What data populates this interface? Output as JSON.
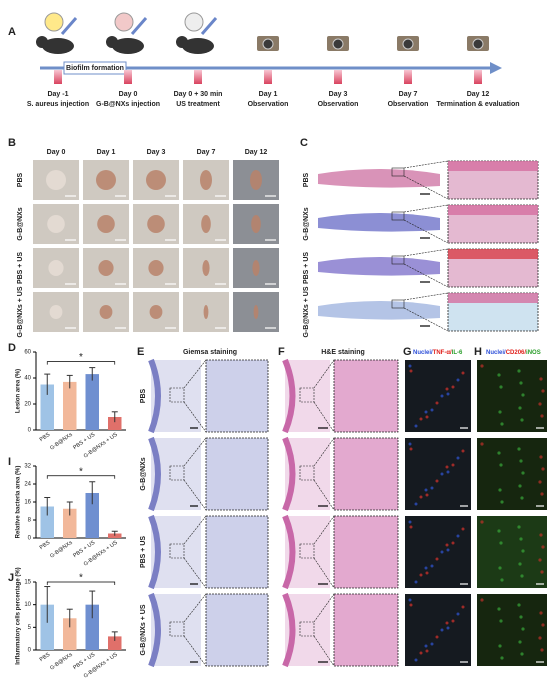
{
  "panel_a": {
    "label": "A",
    "banner": "Biofilm formation",
    "timeline": [
      {
        "day": "Day -1",
        "event": "S. aureus injection"
      },
      {
        "day": "Day 0",
        "event": "G-B@NXs injection"
      },
      {
        "day": "Day 0 + 30 min",
        "event": "US treatment"
      },
      {
        "day": "Day 1",
        "event": "Observation"
      },
      {
        "day": "Day 3",
        "event": "Observation"
      },
      {
        "day": "Day 7",
        "event": "Observation"
      },
      {
        "day": "Day 12",
        "event": "Termination & evaluation"
      }
    ]
  },
  "panel_b": {
    "label": "B",
    "days": [
      "Day 0",
      "Day 1",
      "Day 3",
      "Day 7",
      "Day 12"
    ],
    "groups": [
      "PBS",
      "G-B@NXs",
      "PBS + US",
      "G-B@NXs + US"
    ]
  },
  "panel_c": {
    "label": "C",
    "groups": [
      "PBS",
      "G-B@NXs",
      "PBS + US",
      "G-B@NXs + US"
    ]
  },
  "panel_e": {
    "label": "E",
    "title": "Giemsa staining",
    "groups": [
      "PBS",
      "G-B@NXs",
      "PBS + US",
      "G-B@NXs + US"
    ]
  },
  "panel_f": {
    "label": "F",
    "title": "H&E staining"
  },
  "panel_g": {
    "label": "G",
    "title": [
      "Nuclei/",
      "TNF-α/",
      "IL-6"
    ],
    "title_colors": [
      "#2b4ed8",
      "#e0201b",
      "#2a9d2a"
    ]
  },
  "panel_h": {
    "label": "H",
    "title": [
      "Nuclei/",
      "CD206/",
      "iNOS"
    ],
    "title_colors": [
      "#2b4ed8",
      "#e0201b",
      "#2a9d2a"
    ]
  },
  "chart_data": [
    {
      "type": "bar",
      "label": "D",
      "ylabel": "Lesion area (%)",
      "categories": [
        "PBS",
        "G-B@NXs",
        "PBS + US",
        "G-B@NXs + US"
      ],
      "values": [
        35,
        37,
        43,
        10
      ],
      "errors": [
        8,
        5,
        5,
        4
      ],
      "colors": [
        "#9fc3e6",
        "#f2b89a",
        "#6f8fd0",
        "#e0706a"
      ],
      "ylim": [
        0,
        60
      ],
      "yticks": [
        0,
        20,
        40,
        60
      ],
      "annotation": "*"
    },
    {
      "type": "bar",
      "label": "I",
      "ylabel": "Relative bacteria area (%)",
      "categories": [
        "PBS",
        "G-B@NXs",
        "PBS + US",
        "G-B@NXs + US"
      ],
      "values": [
        14,
        13,
        20,
        2
      ],
      "errors": [
        4,
        3,
        5,
        1
      ],
      "colors": [
        "#9fc3e6",
        "#f2b89a",
        "#6f8fd0",
        "#e0706a"
      ],
      "ylim": [
        0,
        32
      ],
      "yticks": [
        0,
        8,
        16,
        24,
        32
      ],
      "annotation": "*"
    },
    {
      "type": "bar",
      "label": "J",
      "ylabel": "Inflammatory cells percentage (%)",
      "categories": [
        "PBS",
        "G-B@NXs",
        "PBS + US",
        "G-B@NXs + US"
      ],
      "values": [
        10,
        7,
        10,
        3
      ],
      "errors": [
        4,
        2,
        3,
        1
      ],
      "colors": [
        "#9fc3e6",
        "#f2b89a",
        "#6f8fd0",
        "#e0706a"
      ],
      "ylim": [
        0,
        15
      ],
      "yticks": [
        0,
        5,
        10,
        15
      ],
      "annotation": "*"
    }
  ]
}
